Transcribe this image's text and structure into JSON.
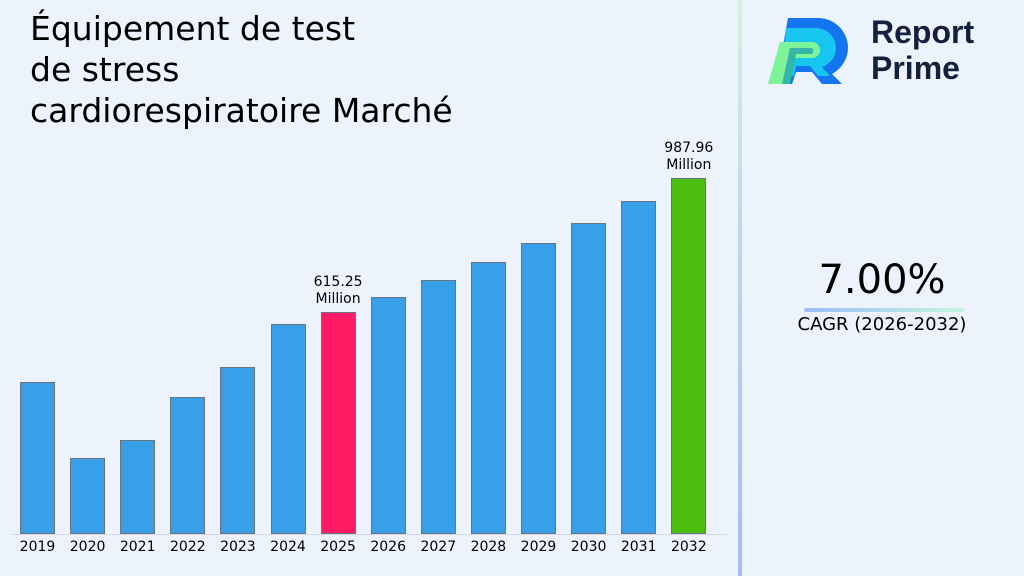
{
  "title": {
    "line1": "Équipement de test",
    "line2": "de stress",
    "line3": "cardiorespiratoire Marché"
  },
  "brand": {
    "logo_icon": "report-prime-r-logo",
    "line1": "Report",
    "line2": "Prime"
  },
  "cagr": {
    "value": "7.00%",
    "label": "CAGR (2026-2032)"
  },
  "annotations": {
    "a2025": {
      "value": "615.25",
      "unit": "Million"
    },
    "a2032": {
      "value": "987.96",
      "unit": "Million"
    }
  },
  "colors": {
    "default_bar": "#37a0e8",
    "highlight_2025": "#fe1b64",
    "highlight_2032": "#4cbe0e",
    "background": "#edf3fd",
    "brand_text": "#14213d"
  },
  "chart_data": {
    "type": "bar",
    "title": "Équipement de test de stress cardiorespiratoire Marché",
    "xlabel": "",
    "ylabel": "Million",
    "categories": [
      "2019",
      "2020",
      "2021",
      "2022",
      "2023",
      "2024",
      "2025",
      "2026",
      "2027",
      "2028",
      "2029",
      "2030",
      "2031",
      "2032"
    ],
    "values": [
      422,
      212,
      262,
      380,
      464,
      582,
      615.25,
      658.3,
      704.4,
      753.7,
      806.5,
      862.9,
      923.3,
      987.96
    ],
    "annotated": {
      "2025": "615.25 Million",
      "2032": "987.96 Million"
    },
    "ylim": [
      0,
      1000
    ],
    "grid": false,
    "legend": "none",
    "cagr": "7.00% (2026-2032)"
  }
}
